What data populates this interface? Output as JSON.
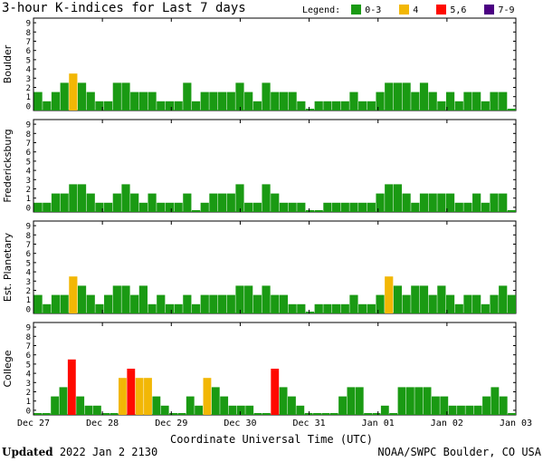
{
  "header": {
    "title": "3-hour K-indices for Last 7 days",
    "legend_label": "Legend:",
    "legend": [
      {
        "label": "0-3",
        "color": "#1a9a13"
      },
      {
        "label": "4",
        "color": "#f2b705"
      },
      {
        "label": "5,6",
        "color": "#ff0a00"
      },
      {
        "label": "7-9",
        "color": "#4b0082"
      }
    ]
  },
  "footer": {
    "updated_label": "Updated",
    "updated_value": "2022 Jan  2 2130",
    "credit": "NOAA/SWPC Boulder, CO USA"
  },
  "chart_data": {
    "type": "bar",
    "xlabel": "Coordinate Universal Time (UTC)",
    "x_ticks": [
      "Dec 27",
      "Dec 28",
      "Dec 29",
      "Dec 30",
      "Dec 31",
      "Jan 01",
      "Jan 02",
      "Jan 03"
    ],
    "ylim": [
      0,
      9
    ],
    "y_ticks": [
      0,
      1,
      2,
      3,
      4,
      5,
      6,
      7,
      8,
      9
    ],
    "color_scale": {
      "0-3": "#1a9a13",
      "4": "#f2b705",
      "5,6": "#ff0a00",
      "7-9": "#4b0082"
    },
    "panels": [
      {
        "name": "Boulder",
        "values": [
          2,
          1,
          2,
          3,
          4,
          3,
          2,
          1,
          1,
          3,
          3,
          2,
          2,
          2,
          1,
          1,
          1,
          3,
          1,
          2,
          2,
          2,
          2,
          3,
          2,
          1,
          3,
          2,
          2,
          2,
          1,
          0,
          1,
          1,
          1,
          1,
          2,
          1,
          1,
          2,
          3,
          3,
          3,
          2,
          3,
          2,
          1,
          2,
          1,
          2,
          2,
          1,
          2,
          2,
          0
        ]
      },
      {
        "name": "Fredericksburg",
        "values": [
          1,
          1,
          2,
          2,
          3,
          3,
          2,
          1,
          1,
          2,
          3,
          2,
          1,
          2,
          1,
          1,
          1,
          2,
          0,
          1,
          2,
          2,
          2,
          3,
          1,
          1,
          3,
          2,
          1,
          1,
          1,
          0,
          0,
          1,
          1,
          1,
          1,
          1,
          1,
          2,
          3,
          3,
          2,
          1,
          2,
          2,
          2,
          2,
          1,
          1,
          2,
          1,
          2,
          2,
          0
        ]
      },
      {
        "name": "Est. Planetary",
        "values": [
          2,
          1,
          2,
          2,
          4,
          3,
          2,
          1,
          2,
          3,
          3,
          2,
          3,
          1,
          2,
          1,
          1,
          2,
          1,
          2,
          2,
          2,
          2,
          3,
          3,
          2,
          3,
          2,
          2,
          1,
          1,
          0,
          1,
          1,
          1,
          1,
          2,
          1,
          1,
          2,
          4,
          3,
          2,
          3,
          3,
          2,
          3,
          2,
          1,
          2,
          2,
          1,
          2,
          3,
          2
        ]
      },
      {
        "name": "College",
        "values": [
          0,
          0,
          2,
          3,
          6,
          2,
          1,
          1,
          0,
          0,
          4,
          5,
          4,
          4,
          2,
          1,
          0,
          0,
          2,
          1,
          4,
          3,
          2,
          1,
          1,
          1,
          0,
          0,
          5,
          3,
          2,
          1,
          0,
          0,
          0,
          0,
          2,
          3,
          3,
          0,
          0,
          1,
          0,
          3,
          3,
          3,
          3,
          2,
          2,
          1,
          1,
          1,
          1,
          2,
          3,
          2,
          0
        ]
      }
    ]
  }
}
